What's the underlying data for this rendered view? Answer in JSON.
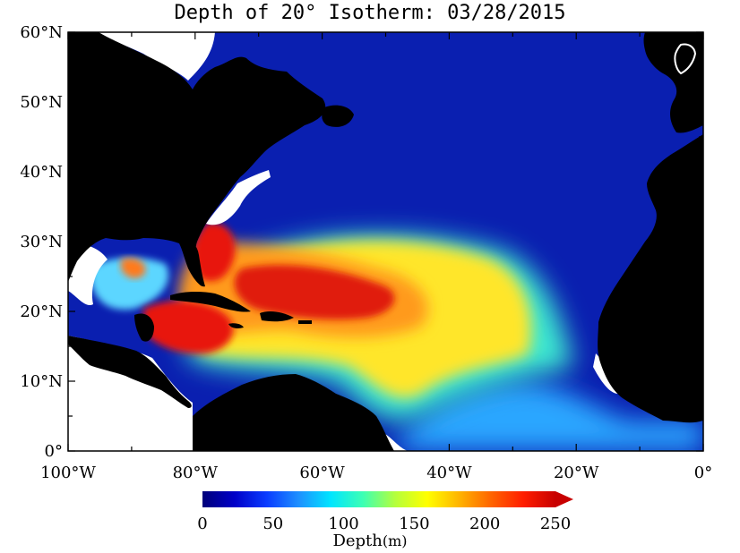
{
  "title": "Depth of 20° Isotherm: 03/28/2015",
  "map": {
    "lon_range": [
      -100,
      0
    ],
    "lat_range": [
      0,
      60
    ],
    "lat_ticks": [
      {
        "value": 60,
        "label": "60°N"
      },
      {
        "value": 50,
        "label": "50°N"
      },
      {
        "value": 40,
        "label": "40°N"
      },
      {
        "value": 30,
        "label": "30°N"
      },
      {
        "value": 20,
        "label": "20°N"
      },
      {
        "value": 10,
        "label": "10°N"
      },
      {
        "value": 0,
        "label": "0°"
      }
    ],
    "lon_ticks": [
      {
        "value": -100,
        "label": "100°W"
      },
      {
        "value": -80,
        "label": "80°W"
      },
      {
        "value": -60,
        "label": "60°W"
      },
      {
        "value": -40,
        "label": "40°W"
      },
      {
        "value": -20,
        "label": "20°W"
      },
      {
        "value": 0,
        "label": "0°"
      }
    ],
    "colors": {
      "land": "#000000",
      "ocean_deep_blue": "#0a1fb0",
      "missing": "#ffffff"
    }
  },
  "legend": {
    "title": "Depth",
    "unit": "(m)",
    "min": 0,
    "max": 250,
    "ticks": [
      "0",
      "50",
      "100",
      "150",
      "200",
      "250"
    ],
    "colors": [
      "#00007a",
      "#0000c8",
      "#0a3cff",
      "#1e90ff",
      "#00e5ff",
      "#3cffb4",
      "#b4ff3c",
      "#ffff00",
      "#ffb400",
      "#ff6400",
      "#ff1e00",
      "#c80000"
    ]
  }
}
